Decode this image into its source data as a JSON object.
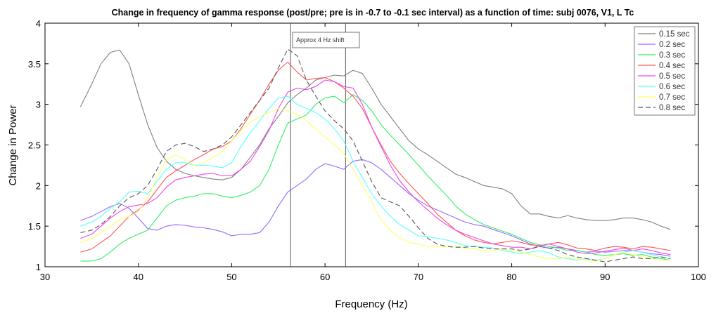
{
  "chart_data": {
    "type": "line",
    "title": "Change in frequency of gamma response (post/pre; pre is  in -0.7 to -0.1 sec interval)  as a function of time: subj 0076, V1, L Tc",
    "xlabel": "Frequency (Hz)",
    "ylabel": "Change in Power",
    "xlim": [
      30,
      100
    ],
    "ylim": [
      1,
      4
    ],
    "xticks": [
      "30",
      "40",
      "50",
      "60",
      "70",
      "80",
      "90",
      "100"
    ],
    "yticks": [
      "1",
      "1.5",
      "2",
      "2.5",
      "3",
      "3.5",
      "4"
    ],
    "grid": false,
    "legend_position": "top-right",
    "annotation": {
      "text": "Approx 4 Hz shift"
    },
    "vlines": [
      56.3,
      62.2
    ],
    "series": [
      {
        "name": "0.15 sec",
        "color": "#808080",
        "dash": false,
        "x": [
          33.8,
          35,
          36,
          37,
          38,
          39,
          40,
          41,
          42,
          43,
          44,
          45,
          46,
          47,
          48,
          49,
          50,
          51,
          52,
          53,
          54,
          55,
          56,
          57,
          58,
          59,
          60,
          61,
          62,
          63,
          64,
          65,
          66,
          67,
          68,
          69,
          70,
          71,
          72,
          73,
          74,
          75,
          76,
          77,
          78,
          79,
          80,
          81,
          82,
          83,
          84,
          85,
          86,
          87,
          88,
          89,
          90,
          91,
          92,
          93,
          94,
          95,
          96,
          97
        ],
        "y": [
          2.97,
          3.25,
          3.5,
          3.64,
          3.67,
          3.5,
          3.12,
          2.75,
          2.47,
          2.3,
          2.2,
          2.15,
          2.12,
          2.1,
          2.08,
          2.07,
          2.1,
          2.2,
          2.35,
          2.5,
          2.7,
          2.85,
          3.02,
          3.12,
          3.2,
          3.3,
          3.33,
          3.36,
          3.35,
          3.42,
          3.38,
          3.2,
          3.0,
          2.85,
          2.7,
          2.55,
          2.45,
          2.38,
          2.3,
          2.22,
          2.14,
          2.1,
          2.05,
          2.0,
          1.98,
          1.96,
          1.9,
          1.75,
          1.65,
          1.65,
          1.62,
          1.6,
          1.63,
          1.6,
          1.58,
          1.57,
          1.57,
          1.58,
          1.6,
          1.6,
          1.58,
          1.55,
          1.5,
          1.46
        ]
      },
      {
        "name": "0.2 sec",
        "color": "#9966ff",
        "dash": false,
        "x": [
          33.8,
          35,
          36,
          37,
          38,
          39,
          40,
          41,
          42,
          43,
          44,
          45,
          46,
          47,
          48,
          49,
          50,
          51,
          52,
          53,
          54,
          55,
          56,
          57,
          58,
          59,
          60,
          61,
          62,
          63,
          64,
          65,
          66,
          67,
          68,
          69,
          70,
          71,
          72,
          73,
          74,
          75,
          76,
          77,
          78,
          79,
          80,
          81,
          82,
          83,
          84,
          85,
          86,
          87,
          88,
          89,
          90,
          91,
          92,
          93,
          94,
          95,
          96,
          97
        ],
        "y": [
          1.57,
          1.62,
          1.68,
          1.74,
          1.78,
          1.72,
          1.6,
          1.47,
          1.45,
          1.5,
          1.52,
          1.51,
          1.49,
          1.48,
          1.46,
          1.43,
          1.38,
          1.4,
          1.4,
          1.42,
          1.55,
          1.75,
          1.92,
          2.0,
          2.08,
          2.2,
          2.27,
          2.24,
          2.2,
          2.3,
          2.32,
          2.28,
          2.2,
          2.1,
          2.0,
          1.9,
          1.82,
          1.75,
          1.7,
          1.65,
          1.6,
          1.55,
          1.52,
          1.5,
          1.46,
          1.42,
          1.38,
          1.33,
          1.28,
          1.25,
          1.23,
          1.24,
          1.22,
          1.2,
          1.18,
          1.19,
          1.18,
          1.19,
          1.2,
          1.2,
          1.18,
          1.16,
          1.15,
          1.13
        ]
      },
      {
        "name": "0.3 sec",
        "color": "#33ee66",
        "dash": false,
        "x": [
          33.8,
          35,
          36,
          37,
          38,
          39,
          40,
          41,
          42,
          43,
          44,
          45,
          46,
          47,
          48,
          49,
          50,
          51,
          52,
          53,
          54,
          55,
          56,
          57,
          58,
          59,
          60,
          61,
          62,
          63,
          64,
          65,
          66,
          67,
          68,
          69,
          70,
          71,
          72,
          73,
          74,
          75,
          76,
          77,
          78,
          79,
          80,
          81,
          82,
          83,
          84,
          85,
          86,
          87,
          88,
          89,
          90,
          91,
          92,
          93,
          94,
          95,
          96,
          97
        ],
        "y": [
          1.07,
          1.07,
          1.1,
          1.18,
          1.28,
          1.35,
          1.4,
          1.45,
          1.6,
          1.75,
          1.82,
          1.85,
          1.87,
          1.9,
          1.9,
          1.87,
          1.85,
          1.88,
          1.92,
          2.0,
          2.2,
          2.5,
          2.77,
          2.82,
          2.87,
          3.0,
          3.08,
          3.1,
          3.02,
          3.12,
          3.05,
          2.92,
          2.75,
          2.62,
          2.5,
          2.38,
          2.25,
          2.12,
          2.0,
          1.88,
          1.75,
          1.65,
          1.58,
          1.52,
          1.48,
          1.44,
          1.4,
          1.35,
          1.3,
          1.27,
          1.25,
          1.23,
          1.2,
          1.2,
          1.18,
          1.15,
          1.14,
          1.15,
          1.16,
          1.14,
          1.15,
          1.12,
          1.1,
          1.08
        ]
      },
      {
        "name": "0.4 sec",
        "color": "#ff5555",
        "dash": false,
        "x": [
          33.8,
          35,
          36,
          37,
          38,
          39,
          40,
          41,
          42,
          43,
          44,
          45,
          46,
          47,
          48,
          49,
          50,
          51,
          52,
          53,
          54,
          55,
          56,
          57,
          58,
          59,
          60,
          61,
          62,
          63,
          64,
          65,
          66,
          67,
          68,
          69,
          70,
          71,
          72,
          73,
          74,
          75,
          76,
          77,
          78,
          79,
          80,
          81,
          82,
          83,
          84,
          85,
          86,
          87,
          88,
          89,
          90,
          91,
          92,
          93,
          94,
          95,
          96,
          97
        ],
        "y": [
          1.18,
          1.22,
          1.3,
          1.38,
          1.5,
          1.62,
          1.7,
          1.8,
          1.95,
          2.1,
          2.18,
          2.25,
          2.32,
          2.38,
          2.45,
          2.48,
          2.55,
          2.7,
          2.88,
          3.05,
          3.25,
          3.42,
          3.52,
          3.4,
          3.3,
          3.32,
          3.33,
          3.28,
          3.2,
          3.1,
          2.95,
          2.72,
          2.5,
          2.3,
          2.15,
          2.02,
          1.9,
          1.78,
          1.65,
          1.55,
          1.45,
          1.38,
          1.33,
          1.3,
          1.28,
          1.3,
          1.32,
          1.3,
          1.27,
          1.26,
          1.28,
          1.3,
          1.27,
          1.23,
          1.22,
          1.2,
          1.23,
          1.25,
          1.24,
          1.22,
          1.25,
          1.24,
          1.22,
          1.2
        ]
      },
      {
        "name": "0.5 sec",
        "color": "#ee44ee",
        "dash": false,
        "x": [
          33.8,
          35,
          36,
          37,
          38,
          39,
          40,
          41,
          42,
          43,
          44,
          45,
          46,
          47,
          48,
          49,
          50,
          51,
          52,
          53,
          54,
          55,
          56,
          57,
          58,
          59,
          60,
          61,
          62,
          63,
          64,
          65,
          66,
          67,
          68,
          69,
          70,
          71,
          72,
          73,
          74,
          75,
          76,
          77,
          78,
          79,
          80,
          81,
          82,
          83,
          84,
          85,
          86,
          87,
          88,
          89,
          90,
          91,
          92,
          93,
          94,
          95,
          96,
          97
        ],
        "y": [
          1.35,
          1.4,
          1.5,
          1.6,
          1.68,
          1.74,
          1.76,
          1.78,
          1.85,
          1.98,
          2.07,
          2.1,
          2.12,
          2.14,
          2.15,
          2.12,
          2.12,
          2.2,
          2.3,
          2.48,
          2.68,
          2.95,
          3.15,
          3.2,
          3.18,
          3.22,
          3.3,
          3.28,
          3.22,
          3.2,
          3.0,
          2.72,
          2.48,
          2.25,
          2.06,
          1.92,
          1.8,
          1.7,
          1.6,
          1.52,
          1.45,
          1.4,
          1.36,
          1.32,
          1.28,
          1.26,
          1.24,
          1.24,
          1.22,
          1.26,
          1.28,
          1.25,
          1.22,
          1.18,
          1.16,
          1.17,
          1.19,
          1.21,
          1.23,
          1.2,
          1.22,
          1.2,
          1.17,
          1.15
        ]
      },
      {
        "name": "0.6 sec",
        "color": "#55ffff",
        "dash": false,
        "x": [
          33.8,
          35,
          36,
          37,
          38,
          39,
          40,
          41,
          42,
          43,
          44,
          45,
          46,
          47,
          48,
          49,
          50,
          51,
          52,
          53,
          54,
          55,
          56,
          57,
          58,
          59,
          60,
          61,
          62,
          63,
          64,
          65,
          66,
          67,
          68,
          69,
          70,
          71,
          72,
          73,
          74,
          75,
          76,
          77,
          78,
          79,
          80,
          81,
          82,
          83,
          84,
          85,
          86,
          87,
          88,
          89,
          90,
          91,
          92,
          93,
          94,
          95,
          96,
          97
        ],
        "y": [
          1.5,
          1.55,
          1.62,
          1.72,
          1.8,
          1.92,
          1.93,
          1.9,
          2.05,
          2.2,
          2.28,
          2.28,
          2.25,
          2.25,
          2.24,
          2.22,
          2.28,
          2.48,
          2.65,
          2.8,
          2.95,
          3.08,
          3.1,
          3.0,
          2.95,
          2.9,
          2.82,
          2.7,
          2.55,
          2.3,
          2.1,
          1.9,
          1.75,
          1.62,
          1.52,
          1.45,
          1.38,
          1.37,
          1.35,
          1.33,
          1.3,
          1.26,
          1.25,
          1.24,
          1.23,
          1.2,
          1.18,
          1.16,
          1.18,
          1.2,
          1.17,
          1.12,
          1.1,
          1.08,
          1.1,
          1.08,
          1.1,
          1.15,
          1.18,
          1.2,
          1.18,
          1.15,
          1.12,
          1.1
        ]
      },
      {
        "name": "0.7 sec",
        "color": "#ffff66",
        "dash": false,
        "x": [
          33.8,
          35,
          36,
          37,
          38,
          39,
          40,
          41,
          42,
          43,
          44,
          45,
          46,
          47,
          48,
          49,
          50,
          51,
          52,
          53,
          54,
          55,
          56,
          57,
          58,
          59,
          60,
          61,
          62,
          63,
          64,
          65,
          66,
          67,
          68,
          69,
          70,
          71,
          72,
          73,
          74,
          75,
          76,
          77,
          78,
          79,
          80,
          81,
          82,
          83,
          84,
          85,
          86,
          87,
          88,
          89,
          90,
          91,
          92,
          93,
          94,
          95,
          96,
          97
        ],
        "y": [
          1.3,
          1.35,
          1.42,
          1.5,
          1.58,
          1.62,
          1.68,
          1.85,
          2.1,
          2.32,
          2.38,
          2.32,
          2.25,
          2.28,
          2.35,
          2.42,
          2.55,
          2.68,
          2.78,
          2.85,
          2.9,
          2.95,
          2.92,
          2.88,
          2.8,
          2.7,
          2.6,
          2.5,
          2.4,
          2.2,
          2.0,
          1.8,
          1.58,
          1.45,
          1.36,
          1.3,
          1.28,
          1.25,
          1.25,
          1.25,
          1.25,
          1.23,
          1.22,
          1.2,
          1.2,
          1.22,
          1.2,
          1.18,
          1.15,
          1.12,
          1.1,
          1.1,
          1.12,
          1.1,
          1.08,
          1.07,
          1.1,
          1.15,
          1.18,
          1.15,
          1.12,
          1.1,
          1.08,
          1.08
        ]
      },
      {
        "name": "0.8 sec",
        "color": "#555555",
        "dash": true,
        "x": [
          33.8,
          35,
          36,
          37,
          38,
          39,
          40,
          41,
          42,
          43,
          44,
          45,
          46,
          47,
          48,
          49,
          50,
          51,
          52,
          53,
          54,
          55,
          56,
          57,
          58,
          59,
          60,
          61,
          62,
          63,
          64,
          65,
          66,
          67,
          68,
          69,
          70,
          71,
          72,
          73,
          74,
          75,
          76,
          77,
          78,
          79,
          80,
          81,
          82,
          83,
          84,
          85,
          86,
          87,
          88,
          89,
          90,
          91,
          92,
          93,
          94,
          95,
          96,
          97
        ],
        "y": [
          1.42,
          1.45,
          1.52,
          1.62,
          1.75,
          1.85,
          1.9,
          2.0,
          2.2,
          2.42,
          2.5,
          2.52,
          2.48,
          2.42,
          2.45,
          2.5,
          2.6,
          2.75,
          2.9,
          3.05,
          3.2,
          3.45,
          3.68,
          3.6,
          3.3,
          3.1,
          2.92,
          2.8,
          2.7,
          2.55,
          2.3,
          2.05,
          1.85,
          1.8,
          1.75,
          1.62,
          1.48,
          1.35,
          1.28,
          1.25,
          1.24,
          1.24,
          1.25,
          1.23,
          1.22,
          1.22,
          1.22,
          1.2,
          1.22,
          1.25,
          1.23,
          1.2,
          1.15,
          1.12,
          1.1,
          1.08,
          1.06,
          1.08,
          1.1,
          1.12,
          1.1,
          1.1,
          1.12,
          1.1
        ]
      }
    ]
  }
}
